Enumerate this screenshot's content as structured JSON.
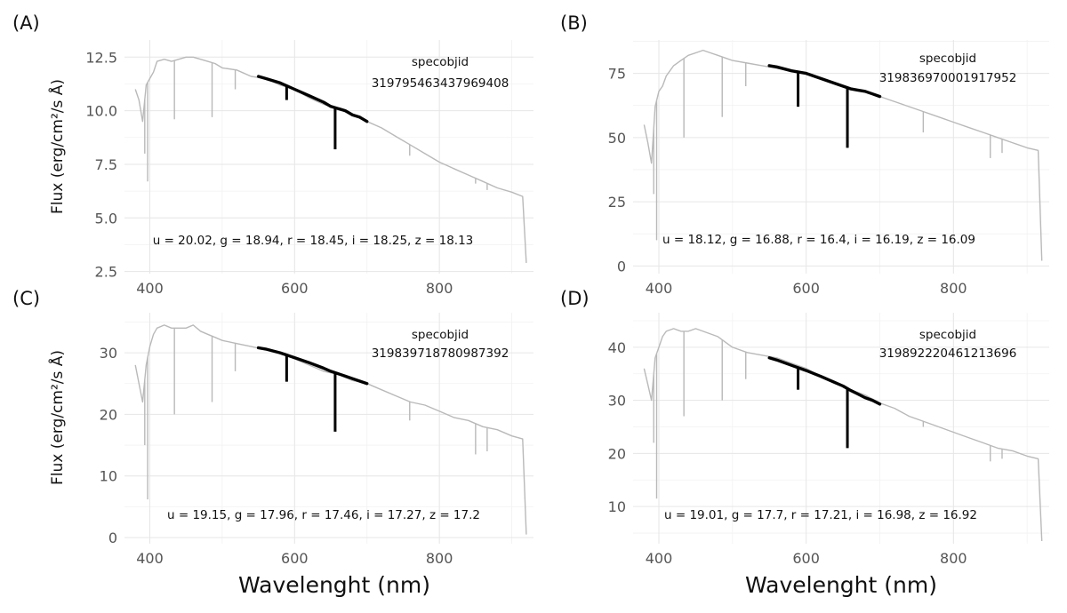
{
  "figure": {
    "xlabel": "Wavelenght (nm)",
    "ylabel": "Flux (erg/cm²/s Å)"
  },
  "colors": {
    "full_spectrum": "#b9b9b9",
    "visible_window": "#000000",
    "grid": "#e6e6e6"
  },
  "chart_data": [
    {
      "panel": "(A)",
      "type": "line",
      "specobjid_label": "specobjid",
      "specobjid": "319795463437969408",
      "magnitudes": "u = 20.02, g = 18.94, r = 18.45, i = 18.25, z = 18.13",
      "xlim": [
        365,
        930
      ],
      "ylim": [
        2.4,
        13.3
      ],
      "x_ticks": [
        400,
        600,
        800
      ],
      "y_ticks": [
        2.5,
        5.0,
        7.5,
        10.0,
        12.5
      ],
      "y_tick_labels": [
        "2.5",
        "5.0",
        "7.5",
        "10.0",
        "12.5"
      ],
      "series": [
        {
          "x": [
            380,
            385,
            390,
            395,
            400,
            405,
            410,
            420,
            430,
            440,
            450,
            460,
            470,
            480,
            490,
            500,
            520,
            540,
            560,
            580,
            600,
            620,
            640,
            660,
            680,
            700,
            720,
            740,
            760,
            780,
            800,
            820,
            840,
            860,
            880,
            900,
            915,
            920
          ],
          "y": [
            11.0,
            10.5,
            9.5,
            11.2,
            11.5,
            11.8,
            12.3,
            12.4,
            12.3,
            12.4,
            12.5,
            12.5,
            12.4,
            12.3,
            12.2,
            12.0,
            11.9,
            11.6,
            11.5,
            11.2,
            11.0,
            10.6,
            10.3,
            10.1,
            9.8,
            9.5,
            9.2,
            8.8,
            8.4,
            8.0,
            7.6,
            7.3,
            7.0,
            6.7,
            6.4,
            6.2,
            6.0,
            2.9
          ]
        },
        {
          "x": [
            550,
            560,
            580,
            600,
            620,
            640,
            650,
            660,
            670,
            680,
            690,
            700
          ],
          "y": [
            11.6,
            11.5,
            11.3,
            11.0,
            10.7,
            10.4,
            10.2,
            10.1,
            10.0,
            9.8,
            9.7,
            9.5
          ]
        }
      ],
      "absorption_lines": [
        {
          "x": 397,
          "y": 6.7
        },
        {
          "x": 393,
          "y": 8.0
        },
        {
          "x": 434,
          "y": 9.6
        },
        {
          "x": 486,
          "y": 9.7
        },
        {
          "x": 518,
          "y": 11.0
        },
        {
          "x": 589,
          "y": 10.5
        },
        {
          "x": 656,
          "y": 8.2
        },
        {
          "x": 759,
          "y": 7.9
        },
        {
          "x": 850,
          "y": 6.6
        },
        {
          "x": 866,
          "y": 6.3
        }
      ]
    },
    {
      "panel": "(B)",
      "type": "line",
      "specobjid_label": "specobjid",
      "specobjid": "319836970001917952",
      "magnitudes": "u = 18.12, g = 16.88, r = 16.4, i = 16.19, z = 16.09",
      "xlim": [
        365,
        930
      ],
      "ylim": [
        -3,
        88
      ],
      "x_ticks": [
        400,
        600,
        800
      ],
      "y_ticks": [
        0,
        25,
        50,
        75
      ],
      "y_tick_labels": [
        "0",
        "25",
        "50",
        "75"
      ],
      "series": [
        {
          "x": [
            380,
            385,
            390,
            395,
            400,
            405,
            410,
            420,
            430,
            440,
            450,
            460,
            470,
            480,
            490,
            500,
            520,
            540,
            560,
            580,
            600,
            620,
            640,
            660,
            680,
            700,
            720,
            740,
            760,
            780,
            800,
            820,
            840,
            860,
            880,
            900,
            915,
            920
          ],
          "y": [
            55,
            48,
            40,
            62,
            68,
            70,
            74,
            78,
            80,
            82,
            83,
            84,
            83,
            82,
            81,
            80,
            79,
            78,
            77,
            76,
            75,
            73,
            71,
            69,
            68,
            66,
            64,
            62,
            60,
            58,
            56,
            54,
            52,
            50,
            48,
            46,
            45,
            2
          ]
        },
        {
          "x": [
            550,
            560,
            580,
            600,
            620,
            640,
            650,
            660,
            670,
            680,
            690,
            700
          ],
          "y": [
            78,
            77.5,
            76,
            75,
            73,
            71,
            70,
            69,
            68.5,
            68,
            67,
            66
          ]
        }
      ],
      "absorption_lines": [
        {
          "x": 397,
          "y": 10
        },
        {
          "x": 393,
          "y": 28
        },
        {
          "x": 434,
          "y": 50
        },
        {
          "x": 486,
          "y": 58
        },
        {
          "x": 518,
          "y": 70
        },
        {
          "x": 589,
          "y": 62
        },
        {
          "x": 656,
          "y": 46
        },
        {
          "x": 759,
          "y": 52
        },
        {
          "x": 850,
          "y": 42
        },
        {
          "x": 866,
          "y": 44
        }
      ]
    },
    {
      "panel": "(C)",
      "type": "line",
      "specobjid_label": "specobjid",
      "specobjid": "319839718780987392",
      "magnitudes": "u = 19.15, g = 17.96, r = 17.46, i = 17.27, z = 17.2",
      "xlim": [
        365,
        930
      ],
      "ylim": [
        -1,
        36.5
      ],
      "x_ticks": [
        400,
        600,
        800
      ],
      "y_ticks": [
        0,
        10,
        20,
        30
      ],
      "y_tick_labels": [
        "0",
        "10",
        "20",
        "30"
      ],
      "series": [
        {
          "x": [
            380,
            385,
            390,
            395,
            400,
            405,
            410,
            420,
            430,
            440,
            450,
            460,
            470,
            480,
            490,
            500,
            520,
            540,
            560,
            580,
            600,
            620,
            640,
            660,
            680,
            700,
            720,
            740,
            760,
            780,
            800,
            820,
            840,
            860,
            880,
            900,
            915,
            920
          ],
          "y": [
            28,
            25,
            22,
            28,
            31,
            33,
            34,
            34.5,
            34,
            34,
            34,
            34.5,
            33.5,
            33,
            32.5,
            32,
            31.5,
            31,
            30.5,
            30,
            29,
            28,
            27,
            26.5,
            25.5,
            25,
            24,
            23,
            22,
            21.5,
            20.5,
            19.5,
            19,
            18,
            17.5,
            16.5,
            16,
            0.5
          ]
        },
        {
          "x": [
            550,
            560,
            580,
            600,
            620,
            640,
            650,
            660,
            670,
            680,
            690,
            700
          ],
          "y": [
            30.8,
            30.6,
            30.0,
            29.2,
            28.4,
            27.5,
            27.0,
            26.6,
            26.2,
            25.8,
            25.4,
            25.0
          ]
        }
      ],
      "absorption_lines": [
        {
          "x": 397,
          "y": 6.2
        },
        {
          "x": 393,
          "y": 15
        },
        {
          "x": 434,
          "y": 20
        },
        {
          "x": 486,
          "y": 22
        },
        {
          "x": 518,
          "y": 27
        },
        {
          "x": 589,
          "y": 25.3
        },
        {
          "x": 656,
          "y": 17.2
        },
        {
          "x": 759,
          "y": 19
        },
        {
          "x": 850,
          "y": 13.5
        },
        {
          "x": 866,
          "y": 14
        }
      ]
    },
    {
      "panel": "(D)",
      "type": "line",
      "specobjid_label": "specobjid",
      "specobjid": "319892220461213696",
      "magnitudes": "u = 19.01, g = 17.7, r = 17.21, i = 16.98, z = 16.92",
      "xlim": [
        365,
        930
      ],
      "ylim": [
        3,
        46.5
      ],
      "x_ticks": [
        400,
        600,
        800
      ],
      "y_ticks": [
        10,
        20,
        30,
        40
      ],
      "y_tick_labels": [
        "10",
        "20",
        "30",
        "40"
      ],
      "series": [
        {
          "x": [
            380,
            385,
            390,
            395,
            400,
            405,
            410,
            420,
            430,
            440,
            450,
            460,
            470,
            480,
            490,
            500,
            520,
            540,
            560,
            580,
            600,
            620,
            640,
            660,
            680,
            700,
            720,
            740,
            760,
            780,
            800,
            820,
            840,
            860,
            880,
            900,
            915,
            920
          ],
          "y": [
            36,
            33,
            30,
            38,
            40,
            42,
            43,
            43.5,
            43,
            43,
            43.5,
            43,
            42.5,
            42,
            41,
            40,
            39,
            38.5,
            38,
            37,
            36,
            34.5,
            33.5,
            32,
            31,
            29.5,
            28.5,
            27,
            26,
            25,
            24,
            23,
            22,
            21,
            20.5,
            19.5,
            19,
            3.5
          ]
        },
        {
          "x": [
            550,
            560,
            580,
            600,
            620,
            640,
            650,
            660,
            670,
            680,
            690,
            700
          ],
          "y": [
            38.0,
            37.6,
            36.6,
            35.6,
            34.5,
            33.3,
            32.7,
            31.9,
            31.2,
            30.5,
            30.0,
            29.3
          ]
        }
      ],
      "absorption_lines": [
        {
          "x": 397,
          "y": 11.5
        },
        {
          "x": 393,
          "y": 22
        },
        {
          "x": 434,
          "y": 27
        },
        {
          "x": 486,
          "y": 30
        },
        {
          "x": 518,
          "y": 34
        },
        {
          "x": 589,
          "y": 32
        },
        {
          "x": 656,
          "y": 21
        },
        {
          "x": 759,
          "y": 25
        },
        {
          "x": 850,
          "y": 18.5
        },
        {
          "x": 866,
          "y": 19
        }
      ]
    }
  ]
}
